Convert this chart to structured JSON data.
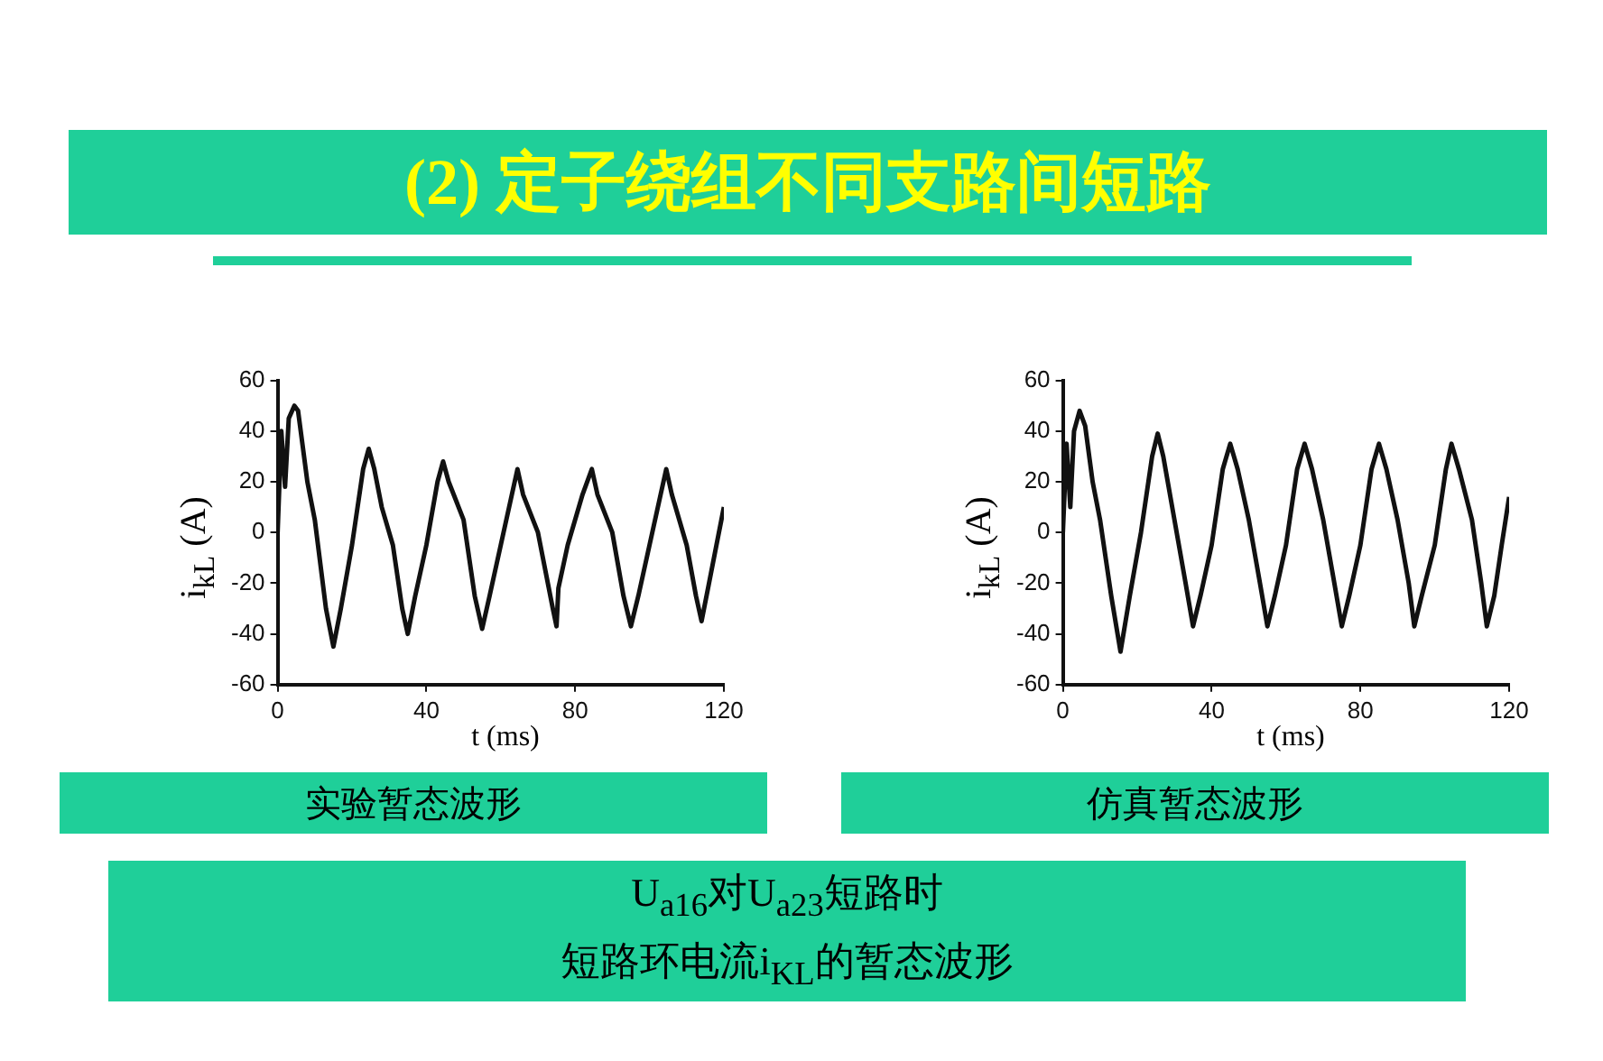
{
  "chart_data": [
    {
      "type": "line",
      "title": "(2)  定子绕组不同支路间短路",
      "xlabel": "t  (ms)",
      "ylabel": "i$_{kL}$  (A)",
      "annotations": [
        "实验暂态波形",
        "U$_{a16}$对U$_{a23}$短路时",
        "短路环电流i$_{KL}$的暂态波形"
      ],
      "xlim": [
        0,
        120
      ],
      "xticks": [
        0,
        40,
        80,
        120
      ],
      "ylim": [
        -60,
        60
      ],
      "yticks": [
        -60,
        -40,
        -20,
        0,
        20,
        40,
        60
      ],
      "grid": false,
      "legend": false,
      "series": [
        {
          "color": "#111111",
          "x": [
            0,
            1,
            2,
            3,
            4.5,
            5.5,
            8,
            10,
            13,
            15,
            17,
            20,
            23,
            24.5,
            26,
            28,
            31,
            33.5,
            35,
            37,
            40,
            43,
            44.5,
            46,
            50,
            53,
            55,
            57,
            60,
            63,
            64.5,
            66,
            70,
            74,
            75,
            75.5,
            78,
            82,
            84.5,
            86,
            90,
            93,
            95,
            97,
            100,
            103,
            104.5,
            106,
            110,
            112.5,
            114,
            116,
            118,
            120
          ],
          "values": [
            0,
            40,
            18,
            45,
            50,
            48,
            20,
            5,
            -30,
            -45,
            -30,
            -5,
            25,
            33,
            25,
            10,
            -5,
            -30,
            -40,
            -25,
            -5,
            20,
            28,
            20,
            5,
            -25,
            -38,
            -25,
            -5,
            15,
            25,
            15,
            0,
            -30,
            -37,
            -22,
            -5,
            15,
            25,
            15,
            0,
            -25,
            -37,
            -25,
            -5,
            15,
            25,
            15,
            -5,
            -25,
            -35,
            -20,
            -5,
            10
          ]
        }
      ]
    },
    {
      "type": "line",
      "xlabel": "t  (ms)",
      "ylabel": "i$_{kL}$  (A)",
      "annotations": [
        "仿真暂态波形"
      ],
      "xlim": [
        0,
        120
      ],
      "xticks": [
        0,
        40,
        80,
        120
      ],
      "ylim": [
        -60,
        60
      ],
      "yticks": [
        -60,
        -40,
        -20,
        0,
        20,
        40,
        60
      ],
      "grid": false,
      "legend": false,
      "series": [
        {
          "color": "#111111",
          "x": [
            0,
            1,
            2,
            3,
            4.5,
            6,
            8,
            10,
            13,
            15.5,
            18,
            21,
            24,
            25.5,
            27,
            30,
            33,
            35,
            37,
            40,
            43,
            45,
            47,
            50,
            53,
            55,
            57,
            60,
            63,
            65,
            67,
            70,
            73,
            75,
            77,
            80,
            83,
            85,
            87,
            90,
            93,
            94.5,
            96.5,
            100,
            103,
            104.5,
            106.5,
            110,
            112.5,
            114,
            116,
            118,
            120
          ],
          "values": [
            0,
            35,
            10,
            40,
            48,
            42,
            20,
            5,
            -25,
            -47,
            -25,
            0,
            30,
            39,
            30,
            5,
            -20,
            -37,
            -25,
            -5,
            25,
            35,
            25,
            5,
            -20,
            -37,
            -25,
            -5,
            25,
            35,
            25,
            5,
            -20,
            -37,
            -25,
            -5,
            25,
            35,
            25,
            5,
            -20,
            -37,
            -25,
            -5,
            25,
            35,
            25,
            5,
            -20,
            -37,
            -25,
            -5,
            14
          ]
        }
      ]
    }
  ]
}
